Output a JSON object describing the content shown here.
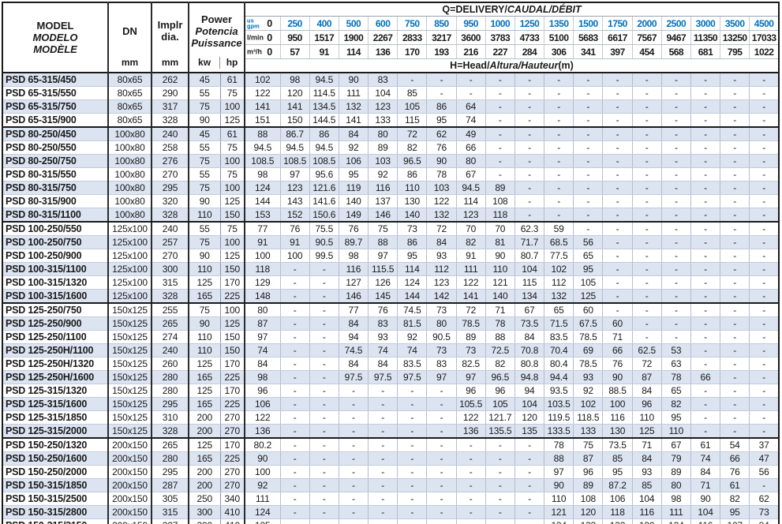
{
  "colors": {
    "gpm_value_blue": "#0070c0",
    "row_shade": "#dce3f1",
    "grid_dark": "#1a1a1a",
    "grid_light": "#b4bdd0"
  },
  "header": {
    "model_lines": [
      "MODEL",
      "MODELO",
      "MODÈLE"
    ],
    "dn_label": "DN",
    "dn_unit": "mm",
    "impeller_lines": [
      "Implr",
      "dia."
    ],
    "impeller_unit": "mm",
    "power_lines": [
      "Power",
      "Potencia",
      "Puissance"
    ],
    "power_unit_kw": "kw",
    "power_unit_hp": "hp",
    "delivery_title_plain": "Q=DELIVERY/",
    "delivery_title_italic": "CAUDAL/DÉBIT",
    "head_title_plain": "H=Head/",
    "head_title_italic": "Altura/Hauteur",
    "head_title_suffix": "(m)",
    "flow_rows": [
      {
        "unit_lines": [
          "us",
          "gpm"
        ],
        "zero": "0",
        "style": "blue",
        "values": [
          "250",
          "400",
          "500",
          "600",
          "750",
          "850",
          "950",
          "1000",
          "1250",
          "1350",
          "1500",
          "1750",
          "2000",
          "2500",
          "3000",
          "3500",
          "4500"
        ]
      },
      {
        "unit_lines": [
          "l/min"
        ],
        "zero": "0",
        "style": "dark unit-wide",
        "values": [
          "950",
          "1517",
          "1900",
          "2267",
          "2833",
          "3217",
          "3600",
          "3783",
          "4733",
          "5100",
          "5683",
          "6617",
          "7567",
          "9467",
          "11350",
          "13250",
          "17033"
        ]
      },
      {
        "unit_lines": [
          "m³/h"
        ],
        "zero": "0",
        "style": "dark unit-wide",
        "values": [
          "57",
          "91",
          "114",
          "136",
          "170",
          "193",
          "216",
          "227",
          "284",
          "306",
          "341",
          "397",
          "454",
          "568",
          "681",
          "795",
          "1022"
        ]
      }
    ]
  },
  "group_end_indices": [
    3,
    10,
    16,
    26
  ],
  "rows": [
    {
      "model": "PSD 65-315/450",
      "dn": "80x65",
      "impeller": "262",
      "kw": "45",
      "hp": "61",
      "head": [
        "102",
        "98",
        "94.5",
        "90",
        "83",
        "-",
        "-",
        "-",
        "-",
        "-",
        "-",
        "-",
        "-",
        "-",
        "-",
        "-",
        "-",
        "-"
      ]
    },
    {
      "model": "PSD 65-315/550",
      "dn": "80x65",
      "impeller": "290",
      "kw": "55",
      "hp": "75",
      "head": [
        "122",
        "120",
        "114.5",
        "111",
        "104",
        "85",
        "-",
        "-",
        "-",
        "-",
        "-",
        "-",
        "-",
        "-",
        "-",
        "-",
        "-",
        "-"
      ]
    },
    {
      "model": "PSD 65-315/750",
      "dn": "80x65",
      "impeller": "317",
      "kw": "75",
      "hp": "100",
      "head": [
        "141",
        "141",
        "134.5",
        "132",
        "123",
        "105",
        "86",
        "64",
        "-",
        "-",
        "-",
        "-",
        "-",
        "-",
        "-",
        "-",
        "-",
        "-"
      ]
    },
    {
      "model": "PSD 65-315/900",
      "dn": "80x65",
      "impeller": "328",
      "kw": "90",
      "hp": "125",
      "head": [
        "151",
        "150",
        "144.5",
        "141",
        "133",
        "115",
        "95",
        "74",
        "-",
        "-",
        "-",
        "-",
        "-",
        "-",
        "-",
        "-",
        "-",
        "-"
      ]
    },
    {
      "model": "PSD 80-250/450",
      "dn": "100x80",
      "impeller": "240",
      "kw": "45",
      "hp": "61",
      "head": [
        "88",
        "86.7",
        "86",
        "84",
        "80",
        "72",
        "62",
        "49",
        "-",
        "-",
        "-",
        "-",
        "-",
        "-",
        "-",
        "-",
        "-",
        "-"
      ]
    },
    {
      "model": "PSD 80-250/550",
      "dn": "100x80",
      "impeller": "258",
      "kw": "55",
      "hp": "75",
      "head": [
        "94.5",
        "94.5",
        "94.5",
        "92",
        "89",
        "82",
        "76",
        "66",
        "-",
        "-",
        "-",
        "-",
        "-",
        "-",
        "-",
        "-",
        "-",
        "-"
      ]
    },
    {
      "model": "PSD 80-250/750",
      "dn": "100x80",
      "impeller": "276",
      "kw": "75",
      "hp": "100",
      "head": [
        "108.5",
        "108.5",
        "108.5",
        "106",
        "103",
        "96.5",
        "90",
        "80",
        "-",
        "-",
        "-",
        "-",
        "-",
        "-",
        "-",
        "-",
        "-",
        "-"
      ]
    },
    {
      "model": "PSD 80-315/550",
      "dn": "100x80",
      "impeller": "270",
      "kw": "55",
      "hp": "75",
      "head": [
        "98",
        "97",
        "95.6",
        "95",
        "92",
        "86",
        "78",
        "67",
        "-",
        "-",
        "-",
        "-",
        "-",
        "-",
        "-",
        "-",
        "-",
        "-"
      ]
    },
    {
      "model": "PSD 80-315/750",
      "dn": "100x80",
      "impeller": "295",
      "kw": "75",
      "hp": "100",
      "head": [
        "124",
        "123",
        "121.6",
        "119",
        "116",
        "110",
        "103",
        "94.5",
        "89",
        "-",
        "-",
        "-",
        "-",
        "-",
        "-",
        "-",
        "-",
        "-"
      ]
    },
    {
      "model": "PSD 80-315/900",
      "dn": "100x80",
      "impeller": "320",
      "kw": "90",
      "hp": "125",
      "head": [
        "144",
        "143",
        "141.6",
        "140",
        "137",
        "130",
        "122",
        "114",
        "108",
        "-",
        "-",
        "-",
        "-",
        "-",
        "-",
        "-",
        "-",
        "-"
      ]
    },
    {
      "model": "PSD 80-315/1100",
      "dn": "100x80",
      "impeller": "328",
      "kw": "110",
      "hp": "150",
      "head": [
        "153",
        "152",
        "150.6",
        "149",
        "146",
        "140",
        "132",
        "123",
        "118",
        "-",
        "-",
        "-",
        "-",
        "-",
        "-",
        "-",
        "-",
        "-"
      ]
    },
    {
      "model": "PSD 100-250/550",
      "dn": "125x100",
      "impeller": "240",
      "kw": "55",
      "hp": "75",
      "head": [
        "77",
        "76",
        "75.5",
        "76",
        "75",
        "73",
        "72",
        "70",
        "70",
        "62.3",
        "59",
        "-",
        "-",
        "-",
        "-",
        "-",
        "-",
        "-"
      ]
    },
    {
      "model": "PSD 100-250/750",
      "dn": "125x100",
      "impeller": "257",
      "kw": "75",
      "hp": "100",
      "head": [
        "91",
        "91",
        "90.5",
        "89.7",
        "88",
        "86",
        "84",
        "82",
        "81",
        "71.7",
        "68.5",
        "56",
        "-",
        "-",
        "-",
        "-",
        "-",
        "-"
      ]
    },
    {
      "model": "PSD 100-250/900",
      "dn": "125x100",
      "impeller": "270",
      "kw": "90",
      "hp": "125",
      "head": [
        "100",
        "100",
        "99.5",
        "98",
        "97",
        "95",
        "93",
        "91",
        "90",
        "80.7",
        "77.5",
        "65",
        "-",
        "-",
        "-",
        "-",
        "-",
        "-"
      ]
    },
    {
      "model": "PSD 100-315/1100",
      "dn": "125x100",
      "impeller": "300",
      "kw": "110",
      "hp": "150",
      "head": [
        "118",
        "-",
        "-",
        "116",
        "115.5",
        "114",
        "112",
        "111",
        "110",
        "104",
        "102",
        "95",
        "-",
        "-",
        "-",
        "-",
        "-",
        "-"
      ]
    },
    {
      "model": "PSD 100-315/1320",
      "dn": "125x100",
      "impeller": "315",
      "kw": "125",
      "hp": "170",
      "head": [
        "129",
        "-",
        "-",
        "127",
        "126",
        "124",
        "123",
        "122",
        "121",
        "115",
        "112",
        "105",
        "-",
        "-",
        "-",
        "-",
        "-",
        "-"
      ]
    },
    {
      "model": "PSD 100-315/1600",
      "dn": "125x100",
      "impeller": "328",
      "kw": "165",
      "hp": "225",
      "head": [
        "148",
        "-",
        "-",
        "146",
        "145",
        "144",
        "142",
        "141",
        "140",
        "134",
        "132",
        "125",
        "-",
        "-",
        "-",
        "-",
        "-",
        "-"
      ]
    },
    {
      "model": "PSD 125-250/750",
      "dn": "150x125",
      "impeller": "255",
      "kw": "75",
      "hp": "100",
      "head": [
        "80",
        "-",
        "-",
        "77",
        "76",
        "74.5",
        "73",
        "72",
        "71",
        "67",
        "65",
        "60",
        "-",
        "-",
        "-",
        "-",
        "-",
        "-"
      ]
    },
    {
      "model": "PSD 125-250/900",
      "dn": "150x125",
      "impeller": "265",
      "kw": "90",
      "hp": "125",
      "head": [
        "87",
        "-",
        "-",
        "84",
        "83",
        "81.5",
        "80",
        "78.5",
        "78",
        "73.5",
        "71.5",
        "67.5",
        "60",
        "-",
        "-",
        "-",
        "-",
        "-"
      ]
    },
    {
      "model": "PSD 125-250/1100",
      "dn": "150x125",
      "impeller": "274",
      "kw": "110",
      "hp": "150",
      "head": [
        "97",
        "-",
        "-",
        "94",
        "93",
        "92",
        "90.5",
        "89",
        "88",
        "84",
        "83.5",
        "78.5",
        "71",
        "-",
        "-",
        "-",
        "-",
        "-"
      ]
    },
    {
      "model": "PSD 125-250H/1100",
      "dn": "150x125",
      "impeller": "240",
      "kw": "110",
      "hp": "150",
      "head": [
        "74",
        "-",
        "-",
        "74.5",
        "74",
        "74",
        "73",
        "73",
        "72.5",
        "70.8",
        "70.4",
        "69",
        "66",
        "62.5",
        "53",
        "-",
        "-",
        "-"
      ]
    },
    {
      "model": "PSD 125-250H/1320",
      "dn": "150x125",
      "impeller": "260",
      "kw": "125",
      "hp": "170",
      "head": [
        "84",
        "-",
        "-",
        "84",
        "84",
        "83.5",
        "83",
        "82.5",
        "82",
        "80.8",
        "80.4",
        "78.5",
        "76",
        "72",
        "63",
        "-",
        "-",
        "-"
      ]
    },
    {
      "model": "PSD 125-250H/1600",
      "dn": "150x125",
      "impeller": "280",
      "kw": "165",
      "hp": "225",
      "head": [
        "98",
        "-",
        "-",
        "97.5",
        "97.5",
        "97.5",
        "97",
        "97",
        "96.5",
        "94.8",
        "94.4",
        "93",
        "90",
        "87",
        "78",
        "66",
        "-",
        "-"
      ]
    },
    {
      "model": "PSD 125-315/1320",
      "dn": "150x125",
      "impeller": "280",
      "kw": "125",
      "hp": "170",
      "head": [
        "96",
        "-",
        "-",
        "-",
        "-",
        "-",
        "-",
        "96",
        "96",
        "94",
        "93.5",
        "92",
        "88.5",
        "84",
        "65",
        "-",
        "-",
        "-"
      ]
    },
    {
      "model": "PSD 125-315/1600",
      "dn": "150x125",
      "impeller": "295",
      "kw": "165",
      "hp": "225",
      "head": [
        "106",
        "-",
        "-",
        "-",
        "-",
        "-",
        "-",
        "105.5",
        "105",
        "104",
        "103.5",
        "102",
        "100",
        "96",
        "82",
        "-",
        "-",
        "-"
      ]
    },
    {
      "model": "PSD 125-315/1850",
      "dn": "150x125",
      "impeller": "310",
      "kw": "200",
      "hp": "270",
      "head": [
        "122",
        "-",
        "-",
        "-",
        "-",
        "-",
        "-",
        "122",
        "121.7",
        "120",
        "119.5",
        "118.5",
        "116",
        "110",
        "95",
        "-",
        "-",
        "-"
      ]
    },
    {
      "model": "PSD 125-315/2000",
      "dn": "150x125",
      "impeller": "328",
      "kw": "200",
      "hp": "270",
      "head": [
        "136",
        "-",
        "-",
        "-",
        "-",
        "-",
        "-",
        "136",
        "135.5",
        "135",
        "133.5",
        "133",
        "130",
        "125",
        "110",
        "-",
        "-",
        "-"
      ]
    },
    {
      "model": "PSD 150-250/1320",
      "dn": "200x150",
      "impeller": "265",
      "kw": "125",
      "hp": "170",
      "head": [
        "80.2",
        "-",
        "-",
        "-",
        "-",
        "-",
        "-",
        "-",
        "-",
        "-",
        "78",
        "75",
        "73.5",
        "71",
        "67",
        "61",
        "54",
        "37"
      ]
    },
    {
      "model": "PSD 150-250/1600",
      "dn": "200x150",
      "impeller": "280",
      "kw": "165",
      "hp": "225",
      "head": [
        "90",
        "-",
        "-",
        "-",
        "-",
        "-",
        "-",
        "-",
        "-",
        "-",
        "88",
        "87",
        "85",
        "84",
        "79",
        "74",
        "66",
        "47"
      ]
    },
    {
      "model": "PSD 150-250/2000",
      "dn": "200x150",
      "impeller": "295",
      "kw": "200",
      "hp": "270",
      "head": [
        "100",
        "-",
        "-",
        "-",
        "-",
        "-",
        "-",
        "-",
        "-",
        "-",
        "97",
        "96",
        "95",
        "93",
        "89",
        "84",
        "76",
        "56"
      ]
    },
    {
      "model": "PSD 150-315/1850",
      "dn": "200x150",
      "impeller": "287",
      "kw": "200",
      "hp": "270",
      "head": [
        "92",
        "-",
        "-",
        "-",
        "-",
        "-",
        "-",
        "-",
        "-",
        "-",
        "90",
        "89",
        "87.2",
        "85",
        "80",
        "71",
        "61",
        "-"
      ]
    },
    {
      "model": "PSD 150-315/2500",
      "dn": "200x150",
      "impeller": "305",
      "kw": "250",
      "hp": "340",
      "head": [
        "111",
        "-",
        "-",
        "-",
        "-",
        "-",
        "-",
        "-",
        "-",
        "-",
        "110",
        "108",
        "106",
        "104",
        "98",
        "90",
        "82",
        "62"
      ]
    },
    {
      "model": "PSD 150-315/2800",
      "dn": "200x150",
      "impeller": "315",
      "kw": "300",
      "hp": "410",
      "head": [
        "124",
        "-",
        "-",
        "-",
        "-",
        "-",
        "-",
        "-",
        "-",
        "-",
        "121",
        "120",
        "118",
        "116",
        "111",
        "104",
        "95",
        "73"
      ]
    },
    {
      "model": "PSD 150-315/3150",
      "dn": "200x150",
      "impeller": "327",
      "kw": "300",
      "hp": "410",
      "head": [
        "135",
        "-",
        "-",
        "-",
        "-",
        "-",
        "-",
        "-",
        "-",
        "-",
        "134",
        "133",
        "132",
        "130",
        "124",
        "116",
        "107",
        "84"
      ]
    }
  ]
}
